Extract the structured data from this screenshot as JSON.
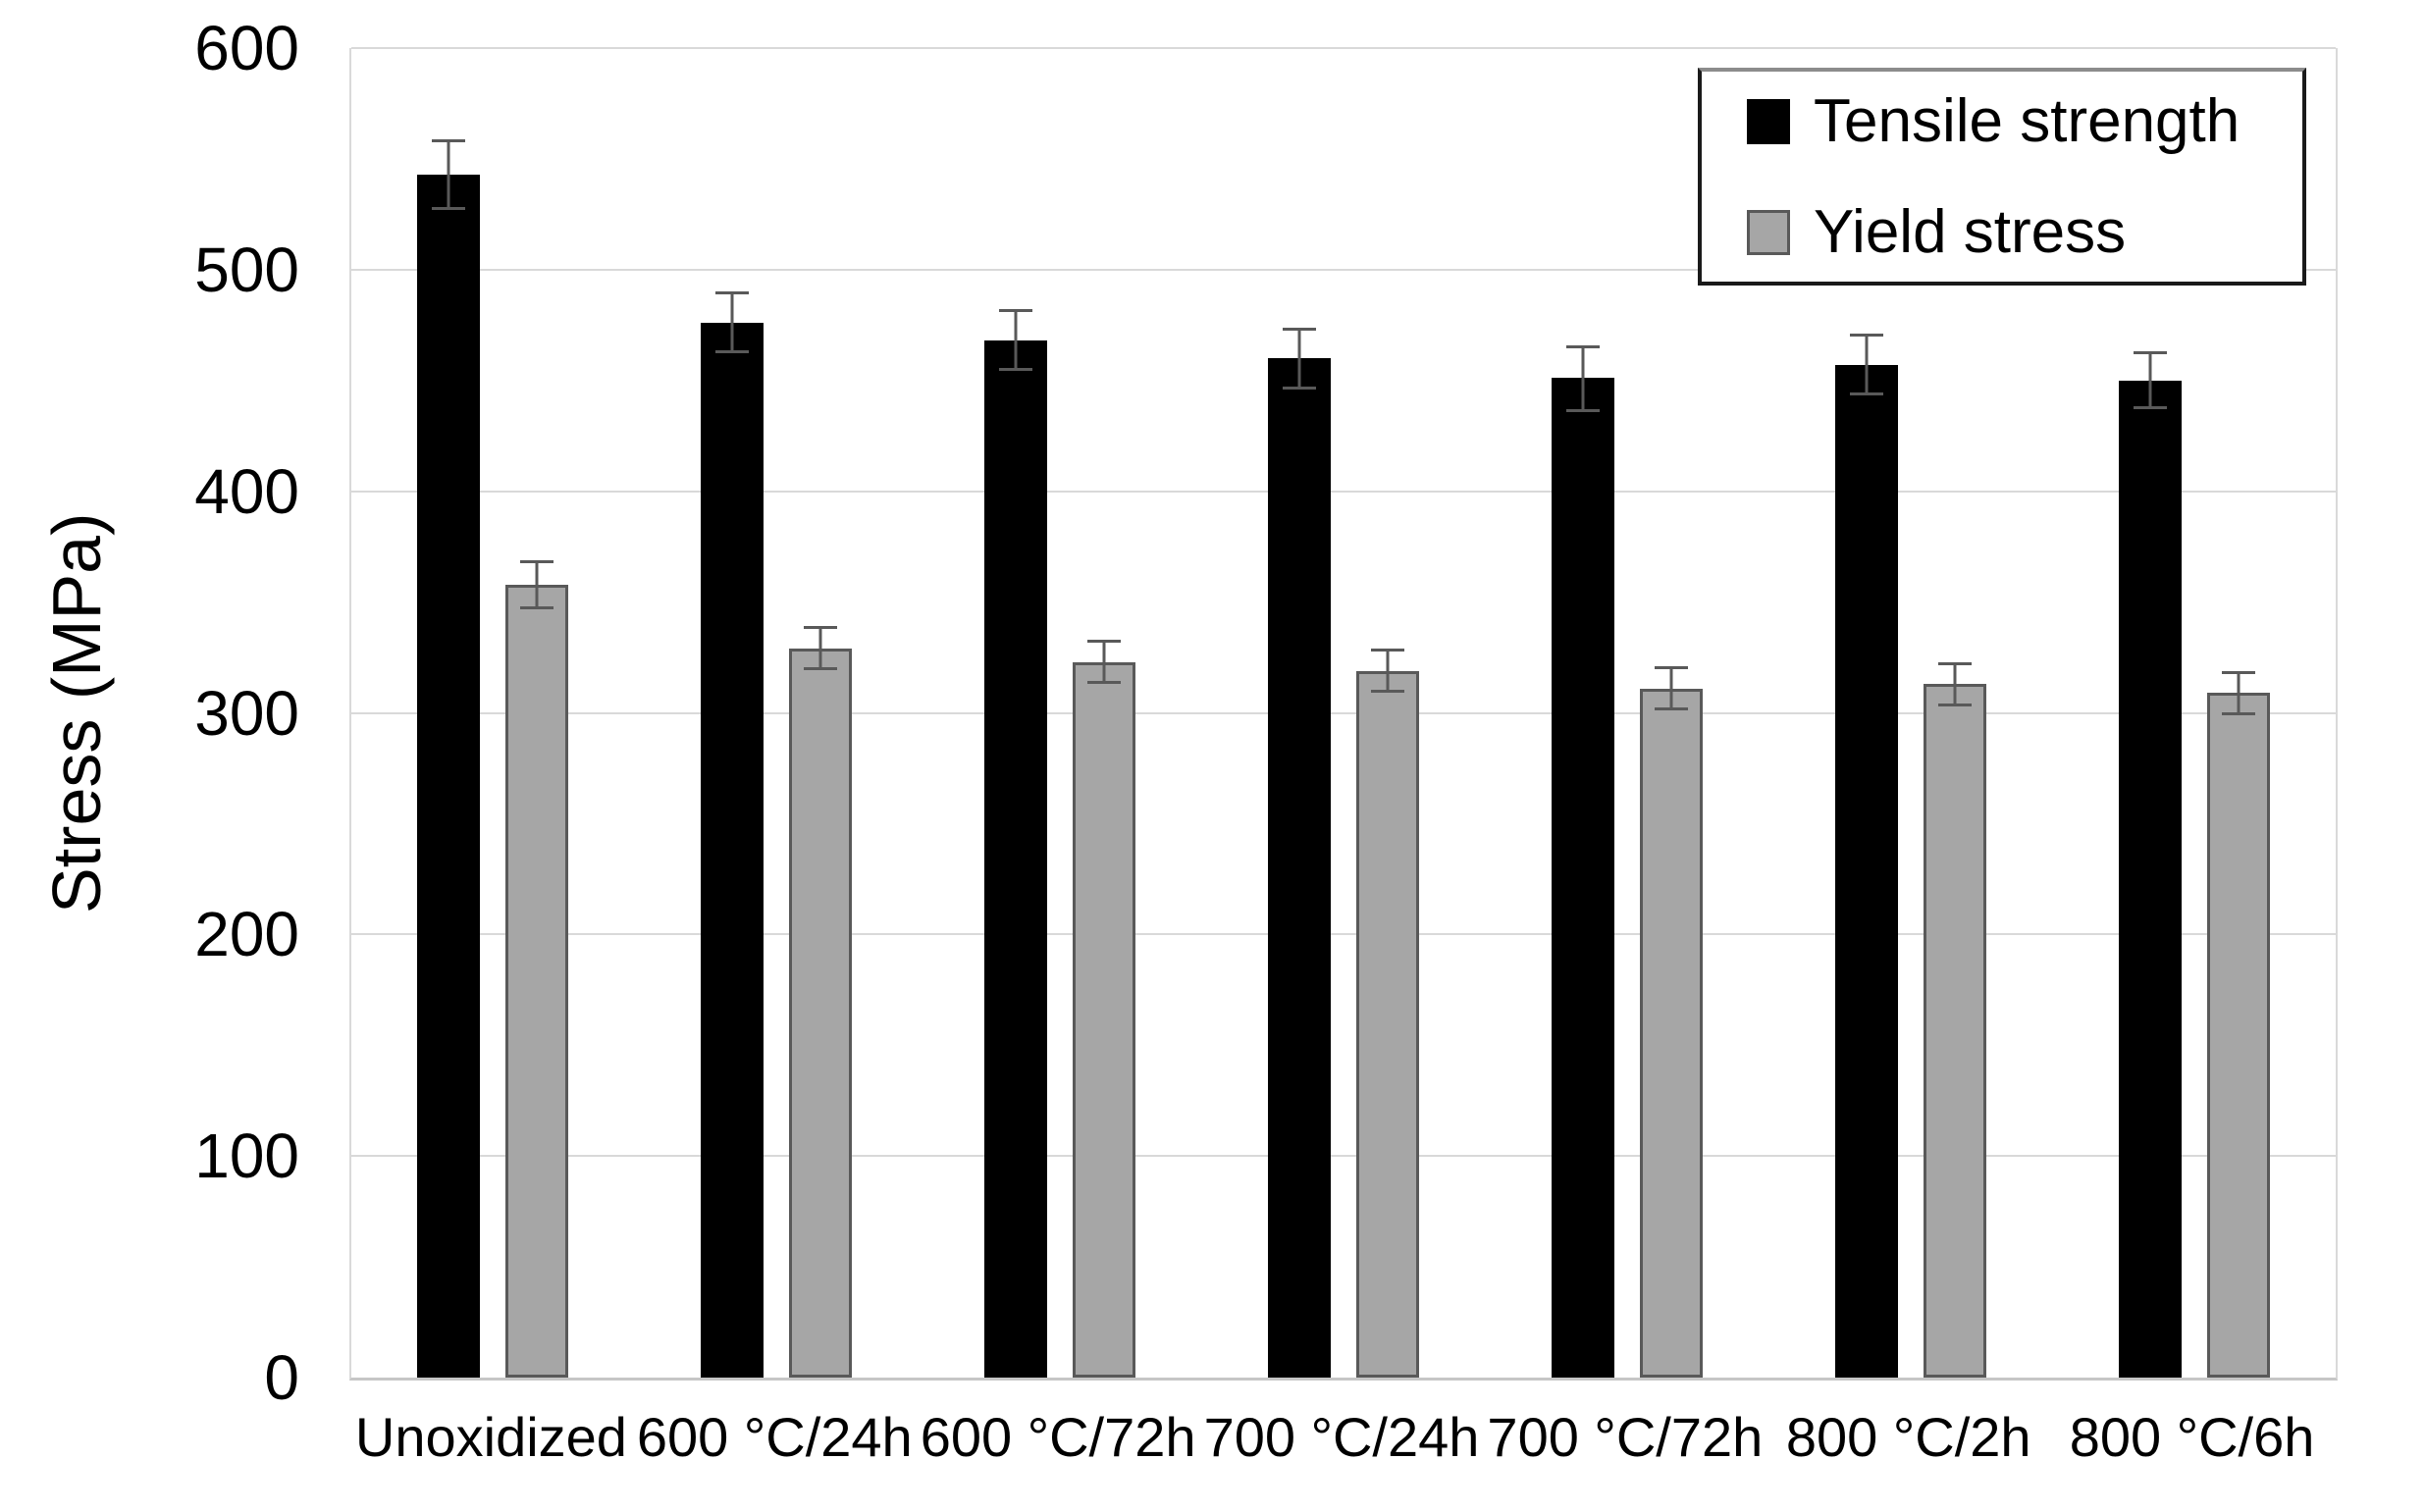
{
  "chart_data": {
    "type": "bar",
    "title": "",
    "xlabel": "",
    "ylabel": "Stress (MPa)",
    "ylim": [
      0,
      600
    ],
    "yticks": [
      600,
      500,
      400,
      300,
      200,
      100,
      0
    ],
    "grid": "horizontal",
    "legend_position": "top-right",
    "categories": [
      "Unoxidized",
      "600 °C/24h",
      "600 °C/72h",
      "700 °C/24h",
      "700 °C/72h",
      "800 °C/2h",
      "800 °C/6h"
    ],
    "series": [
      {
        "name": "Tensile strength",
        "fill": "#000000",
        "border": "#000000",
        "values": [
          543,
          476,
          468,
          460,
          451,
          457,
          450
        ],
        "errors": [
          16,
          14,
          14,
          14,
          15,
          14,
          13
        ]
      },
      {
        "name": "Yield stress",
        "fill": "#a6a6a6",
        "border": "#595959",
        "values": [
          358,
          329,
          323,
          319,
          311,
          313,
          309
        ],
        "errors": [
          11,
          10,
          10,
          10,
          10,
          10,
          10
        ]
      }
    ],
    "colors": {
      "gridline": "#d9d9d9",
      "axis": "#c6c6c6",
      "error_bar": "#595959",
      "background": "#ffffff",
      "text": "#000000"
    }
  }
}
